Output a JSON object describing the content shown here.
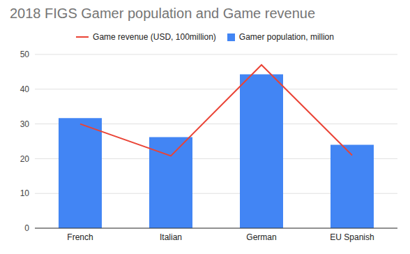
{
  "chart_data": {
    "type": "bar",
    "title": "2018 FIGS Gamer population and Game revenue",
    "categories": [
      "French",
      "Italian",
      "German",
      "EU Spanish"
    ],
    "series": [
      {
        "name": "Game revenue (USD, 100million)",
        "type": "line",
        "color": "#ea4335",
        "values": [
          30,
          20.8,
          47,
          21
        ]
      },
      {
        "name": "Gamer population, million",
        "type": "bar",
        "color": "#4285f4",
        "values": [
          31.7,
          26.2,
          44.3,
          24
        ]
      }
    ],
    "ylim": [
      0,
      50
    ],
    "yticks": [
      0,
      10,
      20,
      30,
      40,
      50
    ],
    "grid": true,
    "legend": "top"
  }
}
